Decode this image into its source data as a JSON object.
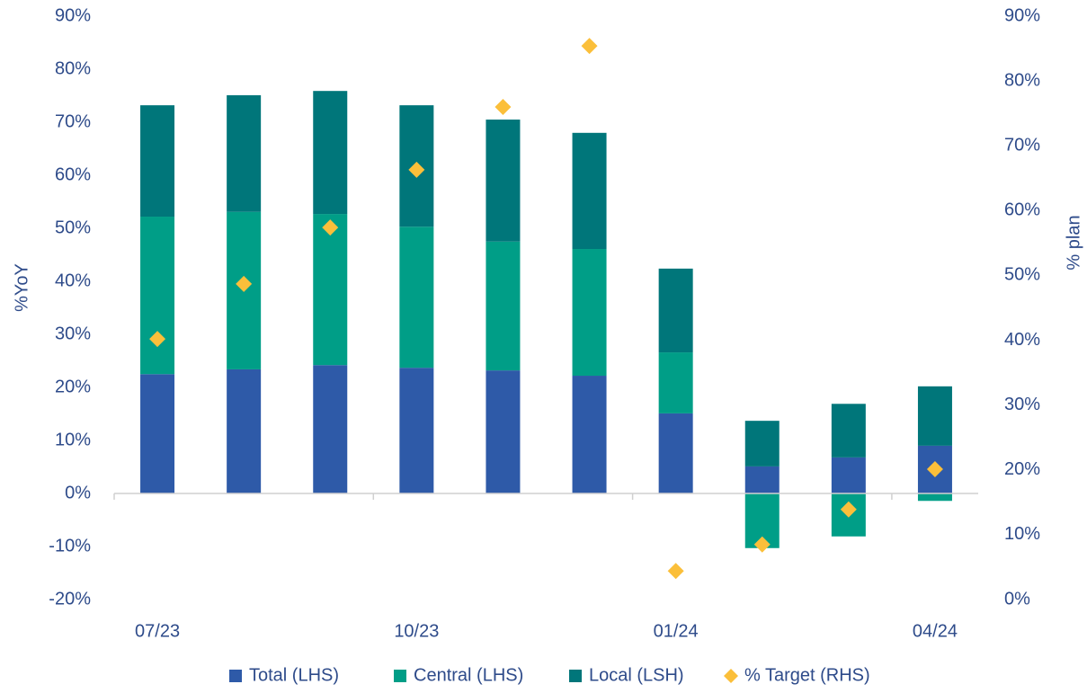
{
  "chart_data": {
    "type": "bar",
    "categories": [
      "07/23",
      null,
      null,
      "10/23",
      null,
      null,
      "01/24",
      null,
      null,
      "04/24"
    ],
    "y_label": "%YoY",
    "y2_label": "% plan",
    "ylim": [
      -20,
      90
    ],
    "yticks": [
      {
        "value": -20,
        "label": "-20%"
      },
      {
        "value": -10,
        "label": "-10%"
      },
      {
        "value": 0,
        "label": "0%"
      },
      {
        "value": 10,
        "label": "10%"
      },
      {
        "value": 20,
        "label": "20%"
      },
      {
        "value": 30,
        "label": "30%"
      },
      {
        "value": 40,
        "label": "40%"
      },
      {
        "value": 50,
        "label": "50%"
      },
      {
        "value": 60,
        "label": "60%"
      },
      {
        "value": 70,
        "label": "70%"
      },
      {
        "value": 80,
        "label": "80%"
      },
      {
        "value": 90,
        "label": "90%"
      }
    ],
    "y2lim": [
      0,
      90
    ],
    "y2ticks": [
      {
        "value": 0,
        "label": "0%"
      },
      {
        "value": 10,
        "label": "10%"
      },
      {
        "value": 20,
        "label": "20%"
      },
      {
        "value": 30,
        "label": "30%"
      },
      {
        "value": 40,
        "label": "40%"
      },
      {
        "value": 50,
        "label": "50%"
      },
      {
        "value": 60,
        "label": "60%"
      },
      {
        "value": 70,
        "label": "70%"
      },
      {
        "value": 80,
        "label": "80%"
      },
      {
        "value": 90,
        "label": "90%"
      }
    ],
    "stacked": true,
    "series": [
      {
        "name": "Total (LHS)",
        "color": "#2e5aa8",
        "values": [
          22.5,
          23.4,
          24.2,
          23.7,
          23.2,
          22.2,
          15.1,
          5.1,
          6.8,
          9.0
        ]
      },
      {
        "name": "Central (LHS)",
        "color": "#009e87",
        "values": [
          29.7,
          29.7,
          28.5,
          26.6,
          24.3,
          23.9,
          11.5,
          -10.3,
          -8.1,
          -1.4
        ]
      },
      {
        "name": "Local (LSH)",
        "color": "#00767a",
        "values": [
          21.0,
          22.0,
          23.2,
          22.9,
          23.0,
          21.9,
          15.8,
          8.6,
          10.1,
          11.2
        ]
      },
      {
        "name": "% Target (RHS)",
        "color": "#fbbf3a",
        "type": "scatter",
        "marker": "diamond",
        "axis": "y2",
        "values": [
          40.2,
          48.7,
          57.4,
          66.3,
          76.0,
          85.4,
          4.4,
          8.5,
          13.9,
          20.1
        ]
      }
    ],
    "legend": "bottom"
  }
}
